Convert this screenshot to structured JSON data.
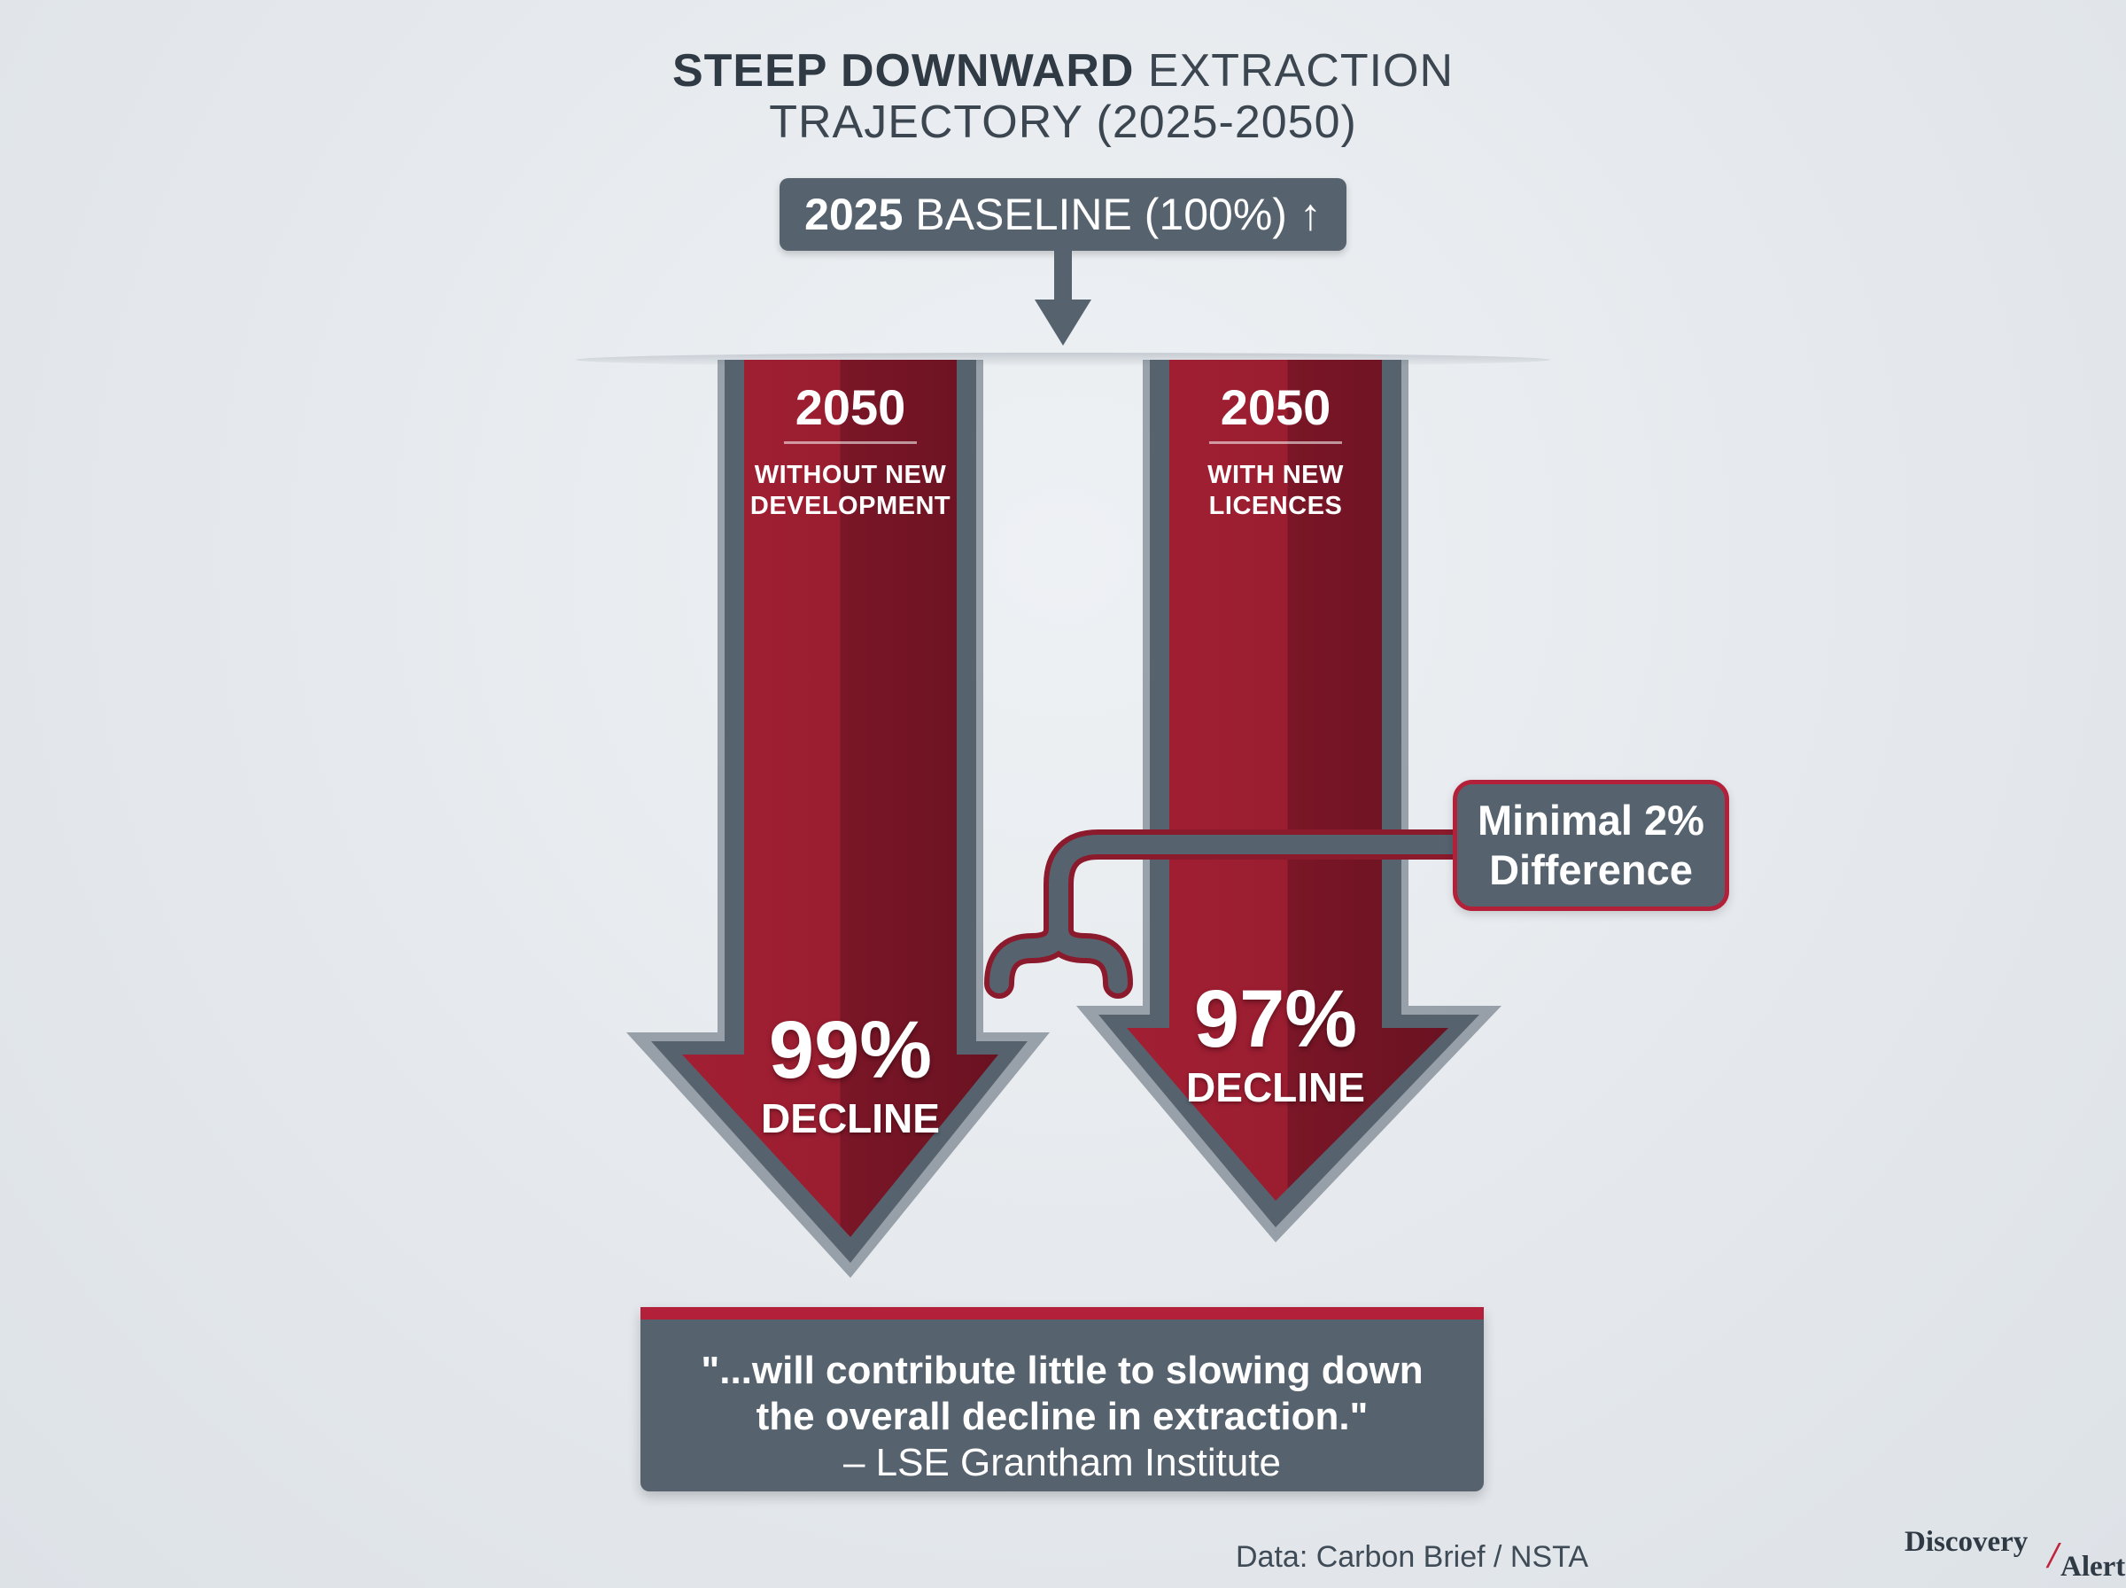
{
  "title": {
    "line1_bold": "STEEP DOWNWARD",
    "line1_rest": " EXTRACTION",
    "line2": "TRAJECTORY (2025-2050)"
  },
  "baseline": {
    "bold": "2025",
    "text": " BASELINE (100%) ↑"
  },
  "arrows": [
    {
      "year": "2050",
      "line1": "WITHOUT NEW",
      "line2": "DEVELOPMENT",
      "percent": "99%",
      "label": "DECLINE"
    },
    {
      "year": "2050",
      "line1": "WITH NEW",
      "line2": "LICENCES",
      "percent": "97%",
      "label": "DECLINE"
    }
  ],
  "callout": {
    "line1": "Minimal 2%",
    "line2": "Difference"
  },
  "quote": {
    "line1": "\"...will contribute little to slowing down",
    "line2": "the overall decline in extraction.\"",
    "source": "– LSE Grantham Institute"
  },
  "source_note": "Data: Carbon Brief / NSTA",
  "logo": {
    "part1": "Discovery",
    "slash": "/",
    "part2": "Alert"
  },
  "colors": {
    "arrow_red": "#9c1e30",
    "arrow_dark": "#6e1423",
    "slate": "#56636f",
    "accent": "#b3203a"
  }
}
